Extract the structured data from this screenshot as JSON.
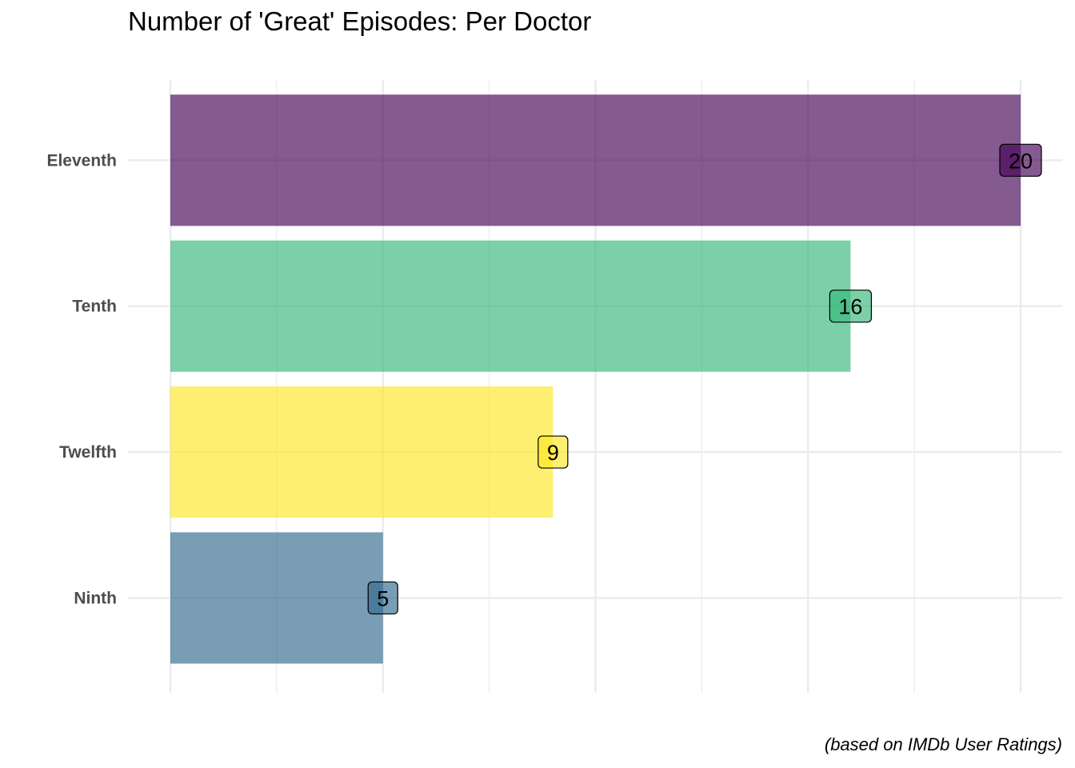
{
  "chart_data": {
    "type": "bar",
    "orientation": "horizontal",
    "title": "Number of 'Great' Episodes: Per Doctor",
    "caption": "(based on IMDb User Ratings)",
    "xlabel": "",
    "ylabel": "",
    "categories": [
      "Eleventh",
      "Tenth",
      "Twelfth",
      "Ninth"
    ],
    "values": [
      20,
      16,
      9,
      5
    ],
    "colors": [
      "#440154",
      "#35b779",
      "#fde725",
      "#31688e"
    ],
    "xlim": [
      0,
      20
    ],
    "grid": true,
    "x_tick_labels_shown": false,
    "legend": "none"
  }
}
